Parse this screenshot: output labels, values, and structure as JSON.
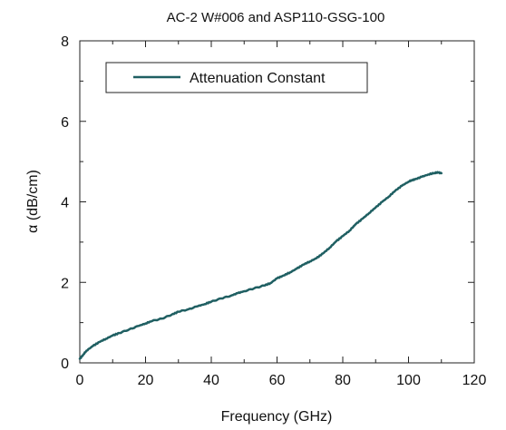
{
  "chart_data": {
    "type": "line",
    "title": "AC-2 W#006 and ASP110-GSG-100",
    "xlabel": "Frequency (GHz)",
    "ylabel": "α (dB/cm)",
    "xlim": [
      0,
      120
    ],
    "ylim": [
      0,
      8
    ],
    "x_ticks": [
      "0",
      "20",
      "40",
      "60",
      "80",
      "100",
      "120"
    ],
    "y_ticks": [
      "0",
      "2",
      "4",
      "6",
      "8"
    ],
    "grid": false,
    "legend_position": "top-left",
    "series": [
      {
        "name": "Attenuation Constant",
        "color": "#1f5f62",
        "x": [
          0,
          1,
          2,
          4,
          6,
          8,
          10,
          12,
          15,
          18,
          20,
          22,
          25,
          28,
          30,
          33,
          36,
          38,
          40,
          43,
          46,
          48,
          50,
          53,
          56,
          58,
          60,
          62,
          64,
          66,
          68,
          70,
          72,
          74,
          76,
          78,
          80,
          82,
          84,
          86,
          88,
          90,
          92,
          94,
          96,
          98,
          100,
          101,
          102,
          104,
          106,
          108,
          109,
          110
        ],
        "y": [
          0.1,
          0.2,
          0.3,
          0.42,
          0.52,
          0.6,
          0.68,
          0.74,
          0.83,
          0.92,
          0.98,
          1.04,
          1.1,
          1.2,
          1.27,
          1.33,
          1.41,
          1.46,
          1.52,
          1.6,
          1.67,
          1.73,
          1.78,
          1.85,
          1.92,
          1.98,
          2.1,
          2.17,
          2.25,
          2.34,
          2.44,
          2.52,
          2.6,
          2.72,
          2.86,
          3.02,
          3.15,
          3.28,
          3.45,
          3.58,
          3.72,
          3.86,
          4.0,
          4.13,
          4.28,
          4.4,
          4.5,
          4.54,
          4.56,
          4.62,
          4.68,
          4.72,
          4.73,
          4.71
        ]
      }
    ]
  }
}
